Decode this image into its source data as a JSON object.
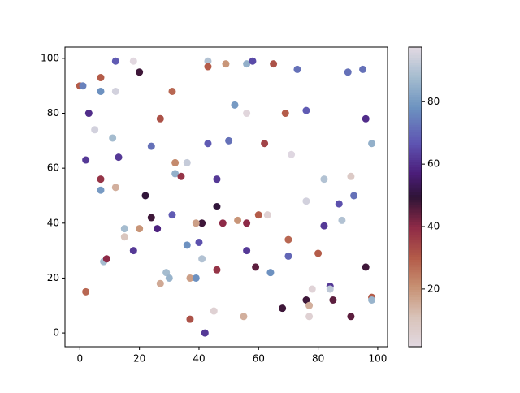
{
  "chart_data": {
    "type": "scatter",
    "colormap": "twilight_r",
    "x": [
      0,
      1,
      18,
      12,
      7,
      7,
      12,
      20,
      3,
      5,
      11,
      2,
      13,
      24,
      27,
      31,
      49,
      43,
      43,
      56,
      58,
      65,
      73,
      90,
      95,
      52,
      56,
      69,
      76,
      96,
      98,
      43,
      50,
      62,
      71,
      32,
      36,
      32,
      34,
      7,
      12,
      7,
      46,
      82,
      91,
      22,
      92,
      87,
      76,
      46,
      24,
      31,
      60,
      63,
      53,
      88,
      41,
      39,
      48,
      56,
      82,
      15,
      20,
      26,
      15,
      70,
      40,
      36,
      18,
      56,
      41,
      8,
      9,
      70,
      80,
      59,
      96,
      46,
      64,
      29,
      30,
      37,
      39,
      27,
      2,
      84,
      84,
      78,
      76,
      85,
      98,
      98,
      77,
      68,
      45,
      91,
      55,
      77,
      37,
      42
    ],
    "y": [
      90,
      90,
      99,
      99,
      93,
      88,
      88,
      95,
      80,
      74,
      71,
      63,
      64,
      68,
      78,
      88,
      98,
      99,
      97,
      98,
      99,
      98,
      96,
      95,
      96,
      83,
      80,
      80,
      81,
      78,
      69,
      69,
      70,
      69,
      65,
      62,
      62,
      58,
      57,
      56,
      53,
      52,
      56,
      56,
      57,
      50,
      50,
      47,
      48,
      46,
      42,
      43,
      43,
      43,
      41,
      41,
      40,
      40,
      40,
      40,
      39,
      38,
      38,
      38,
      35,
      34,
      33,
      32,
      30,
      30,
      27,
      26,
      27,
      28,
      29,
      24,
      24,
      23,
      22,
      22,
      20,
      20,
      20,
      18,
      15,
      17,
      16,
      16,
      12,
      12,
      13,
      12,
      10,
      9,
      8,
      6,
      6,
      6,
      5,
      0
    ],
    "color_values": [
      30,
      75,
      2,
      68,
      30,
      78,
      95,
      48,
      60,
      95,
      88,
      62,
      62,
      72,
      32,
      28,
      20,
      90,
      30,
      85,
      65,
      32,
      72,
      72,
      72,
      80,
      3,
      30,
      68,
      60,
      85,
      68,
      72,
      35,
      97,
      22,
      93,
      85,
      38,
      38,
      15,
      80,
      62,
      90,
      8,
      50,
      72,
      66,
      95,
      50,
      48,
      68,
      30,
      5,
      20,
      90,
      48,
      18,
      40,
      40,
      62,
      88,
      20,
      58,
      10,
      28,
      66,
      78,
      62,
      62,
      90,
      88,
      40,
      70,
      30,
      45,
      48,
      38,
      78,
      88,
      86,
      18,
      78,
      16,
      28,
      62,
      92,
      4,
      48,
      45,
      30,
      86,
      15,
      48,
      5,
      45,
      15,
      5,
      32,
      62
    ],
    "xlim": [
      -5,
      103.3
    ],
    "ylim": [
      -5,
      104.1
    ],
    "clim": [
      1.5,
      97.5
    ],
    "xticks": [
      0,
      20,
      40,
      60,
      80,
      100
    ],
    "yticks": [
      0,
      20,
      40,
      60,
      80,
      100
    ],
    "colorbar_ticks": [
      20,
      40,
      60,
      80
    ]
  }
}
